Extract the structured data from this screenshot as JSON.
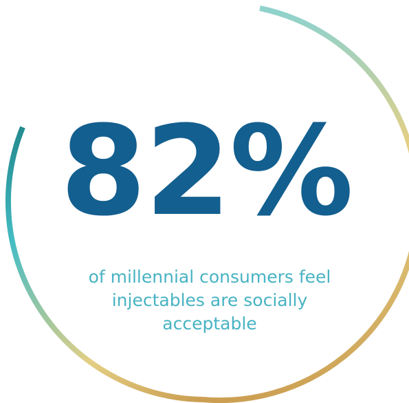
{
  "stat": {
    "value": "82%",
    "caption": "of millennial consumers feel injectables are socially acceptable"
  },
  "colors": {
    "number": "#135f8f",
    "caption": "#48b3c3",
    "ring_teal": "#238b8f",
    "ring_aqua": "#45bcc4",
    "ring_cream": "#e3cf85",
    "ring_gold": "#cc9f52",
    "ring_mint": "#8fd2cd"
  }
}
